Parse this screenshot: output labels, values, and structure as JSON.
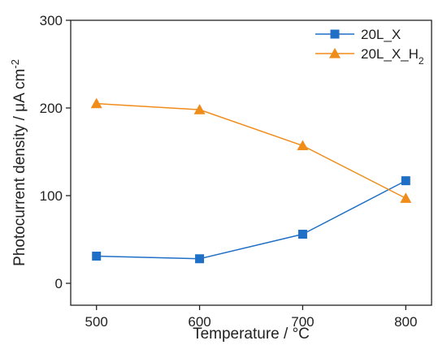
{
  "chart_data": {
    "type": "line",
    "xlabel": "Temperature / °C",
    "ylabel": "Photocurrent density / μA cm⁻²",
    "xlim": [
      475,
      825
    ],
    "ylim": [
      -25,
      300
    ],
    "xticks": [
      500,
      600,
      700,
      800
    ],
    "yticks": [
      0,
      100,
      200,
      300
    ],
    "grid": false,
    "legend_position": "top-right",
    "series": [
      {
        "name": "20L_X",
        "legend_parts": {
          "base": "20L_X",
          "sub": ""
        },
        "marker": "square",
        "color": "#1f6fc6",
        "x": [
          500,
          600,
          700,
          800
        ],
        "y": [
          31,
          28,
          56,
          117
        ]
      },
      {
        "name": "20L_X_H2",
        "legend_parts": {
          "base": "20L_X_H",
          "sub": "2"
        },
        "marker": "triangle",
        "color": "#f08c1a",
        "x": [
          500,
          600,
          700,
          800
        ],
        "y": [
          205,
          198,
          157,
          97
        ]
      }
    ]
  }
}
